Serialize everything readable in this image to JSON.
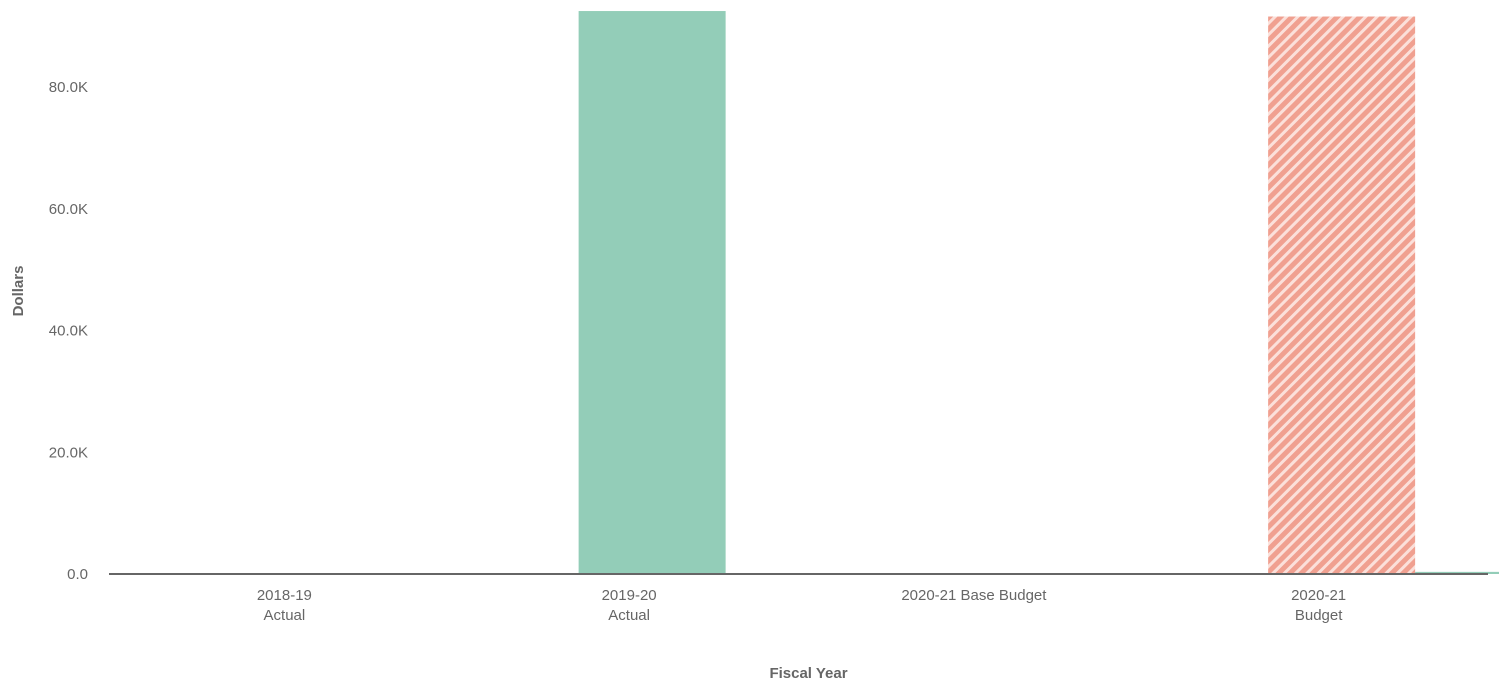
{
  "chart_data": {
    "type": "bar",
    "title": "",
    "xlabel": "Fiscal Year",
    "ylabel": "Dollars",
    "ylim": [
      0,
      93000
    ],
    "yticks": [
      0,
      20000,
      40000,
      60000,
      80000
    ],
    "ytick_labels": [
      "0.0",
      "20.0K",
      "40.0K",
      "60.0K",
      "80.0K"
    ],
    "categories": [
      [
        "2018-19",
        "Actual"
      ],
      [
        "2019-20",
        "Actual"
      ],
      [
        "2020-21 Base Budget"
      ],
      [
        "2020-21",
        "Budget"
      ]
    ],
    "series": [
      {
        "values": [
          0,
          92500,
          0,
          91600
        ],
        "colors": [
          "#93cdb8",
          "#93cdb8",
          "#93cdb8",
          "#f0a090"
        ],
        "hatched": [
          false,
          false,
          false,
          true
        ]
      },
      {
        "values": [
          0,
          0,
          0,
          350
        ],
        "color": "#93cdb8",
        "hatched": false
      }
    ],
    "grid": false,
    "legend": "none"
  }
}
